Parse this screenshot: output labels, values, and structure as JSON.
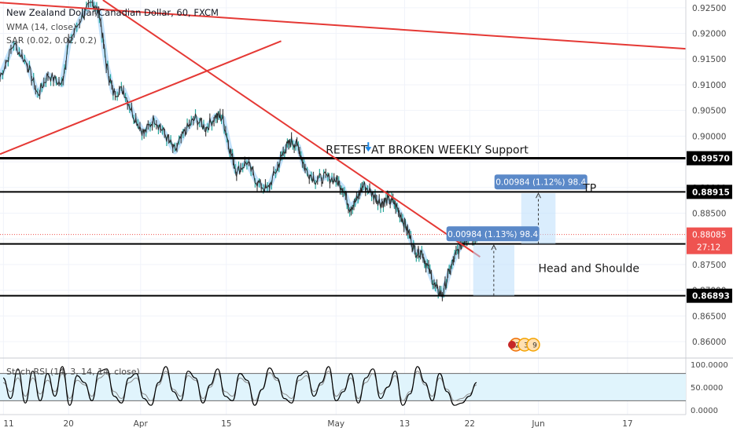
{
  "header": {
    "symbol": "New Zealand Dollar/Canadian Dollar, 60, FXCM",
    "indicator_wma": "WMA (14, close)",
    "indicator_sar": "SAR (0.02, 0.02, 0.2)"
  },
  "chart_data": [
    {
      "type": "line",
      "name": "price",
      "x_ticks": [
        "11",
        "20",
        "Apr",
        "15",
        "May",
        "13",
        "22",
        "Jun",
        "17"
      ],
      "y_ticks": [
        "0.92500",
        "0.92000",
        "0.91500",
        "0.91000",
        "0.90500",
        "0.90000",
        "0.89500",
        "0.89000",
        "0.88500",
        "0.88000",
        "0.87500",
        "0.87000",
        "0.86500",
        "0.86000"
      ],
      "ylim": [
        0.8568,
        0.9265
      ],
      "levels": [
        {
          "label": "0.89570",
          "value": 0.8957
        },
        {
          "label": "0.88915",
          "value": 0.88915
        },
        {
          "label": "0.87903",
          "value": 0.87903
        },
        {
          "label": "0.86893",
          "value": 0.86893
        }
      ],
      "current_price": {
        "label": "0.88085",
        "value": 0.88085,
        "countdown": "27:12",
        "color": "#ef5350"
      },
      "price_path": [
        [
          0.0,
          0.9115
        ],
        [
          0.02,
          0.918
        ],
        [
          0.04,
          0.914
        ],
        [
          0.055,
          0.908
        ],
        [
          0.07,
          0.912
        ],
        [
          0.09,
          0.91
        ],
        [
          0.1,
          0.918
        ],
        [
          0.12,
          0.9235
        ],
        [
          0.135,
          0.926
        ],
        [
          0.145,
          0.924
        ],
        [
          0.155,
          0.914
        ],
        [
          0.165,
          0.9085
        ],
        [
          0.18,
          0.909
        ],
        [
          0.195,
          0.904
        ],
        [
          0.21,
          0.9005
        ],
        [
          0.225,
          0.9035
        ],
        [
          0.24,
          0.9005
        ],
        [
          0.255,
          0.897
        ],
        [
          0.27,
          0.901
        ],
        [
          0.285,
          0.9035
        ],
        [
          0.3,
          0.9015
        ],
        [
          0.315,
          0.904
        ],
        [
          0.325,
          0.9035
        ],
        [
          0.335,
          0.8975
        ],
        [
          0.345,
          0.893
        ],
        [
          0.36,
          0.895
        ],
        [
          0.375,
          0.891
        ],
        [
          0.39,
          0.8895
        ],
        [
          0.405,
          0.894
        ],
        [
          0.415,
          0.8975
        ],
        [
          0.425,
          0.899
        ],
        [
          0.435,
          0.898
        ],
        [
          0.445,
          0.8935
        ],
        [
          0.46,
          0.8915
        ],
        [
          0.475,
          0.892
        ],
        [
          0.49,
          0.8915
        ],
        [
          0.5,
          0.89
        ],
        [
          0.51,
          0.886
        ],
        [
          0.52,
          0.8875
        ],
        [
          0.53,
          0.8905
        ],
        [
          0.545,
          0.8885
        ],
        [
          0.555,
          0.887
        ],
        [
          0.565,
          0.8875
        ],
        [
          0.575,
          0.887
        ],
        [
          0.585,
          0.8845
        ],
        [
          0.595,
          0.8815
        ],
        [
          0.605,
          0.8775
        ],
        [
          0.615,
          0.8775
        ],
        [
          0.625,
          0.874
        ],
        [
          0.635,
          0.8705
        ],
        [
          0.645,
          0.869
        ],
        [
          0.655,
          0.8735
        ],
        [
          0.665,
          0.877
        ],
        [
          0.675,
          0.8795
        ],
        [
          0.685,
          0.8808
        ],
        [
          0.695,
          0.8802
        ]
      ],
      "trendlines": [
        {
          "from": [
            0.15,
            0.9265
          ],
          "to": [
            0.7,
            0.8765
          ],
          "color": "#e53935"
        },
        {
          "from": [
            0.0,
            0.8965
          ],
          "to": [
            0.41,
            0.9185
          ],
          "color": "#e53935"
        },
        {
          "from": [
            0.0,
            0.926
          ],
          "to": [
            1.0,
            0.917
          ],
          "color": "#e53935"
        }
      ],
      "measure_boxes": [
        {
          "label": "0.00984 (1.12%) 98.4",
          "from": 0.87903,
          "to": 0.88887,
          "x": [
            0.76,
            0.81
          ]
        },
        {
          "label": "0.00984 (1.13%) 98.4",
          "from": 0.86893,
          "to": 0.87877,
          "x": [
            0.69,
            0.75
          ]
        }
      ],
      "annotations": [
        {
          "text": "RETEST AT BROKEN WEEKLY Support",
          "x": 0.475,
          "y": 0.8966
        },
        {
          "text": "TP",
          "x": 0.85,
          "y": 0.8891
        },
        {
          "text": "Head and Shoulde",
          "x": 0.785,
          "y": 0.8735
        }
      ],
      "event_badges": [
        "2",
        "3",
        "9"
      ]
    },
    {
      "type": "line",
      "name": "Stoch RSI (14, 3, 14, 14, close)",
      "y_ticks": [
        "100.0000",
        "50.0000",
        "0.0000"
      ],
      "ylim": [
        0,
        100
      ],
      "band": [
        20,
        80
      ],
      "k_values": [
        70,
        25,
        90,
        15,
        85,
        20,
        80,
        30,
        95,
        10,
        75,
        60,
        20,
        85,
        90,
        30,
        15,
        70,
        80,
        25,
        10,
        60,
        95,
        40,
        20,
        85,
        70,
        15,
        55,
        90,
        30,
        20,
        80,
        65,
        10,
        45,
        92,
        70,
        25,
        15,
        75,
        85,
        30,
        60,
        95,
        20,
        40,
        80,
        15,
        70,
        90,
        25,
        50,
        85,
        10,
        35,
        95,
        60,
        20,
        80,
        40,
        10,
        15,
        30,
        60
      ],
      "d_values": [
        60,
        40,
        70,
        30,
        70,
        35,
        65,
        40,
        80,
        25,
        65,
        55,
        30,
        70,
        80,
        40,
        25,
        60,
        70,
        35,
        20,
        55,
        85,
        45,
        30,
        75,
        65,
        25,
        50,
        80,
        40,
        30,
        70,
        60,
        20,
        45,
        82,
        65,
        35,
        25,
        65,
        75,
        40,
        55,
        85,
        30,
        45,
        70,
        25,
        60,
        80,
        35,
        50,
        75,
        20,
        40,
        85,
        55,
        30,
        70,
        45,
        20,
        25,
        35,
        55
      ]
    }
  ],
  "colors": {
    "wma": "#90caf9",
    "level": "#000000",
    "trend": "#e53935",
    "box": "#bbdefb",
    "measure_label": "#5b89c8",
    "band": "#e0f4fc",
    "stoch_k": "#000000",
    "stoch_d": "#8a8a8a"
  }
}
